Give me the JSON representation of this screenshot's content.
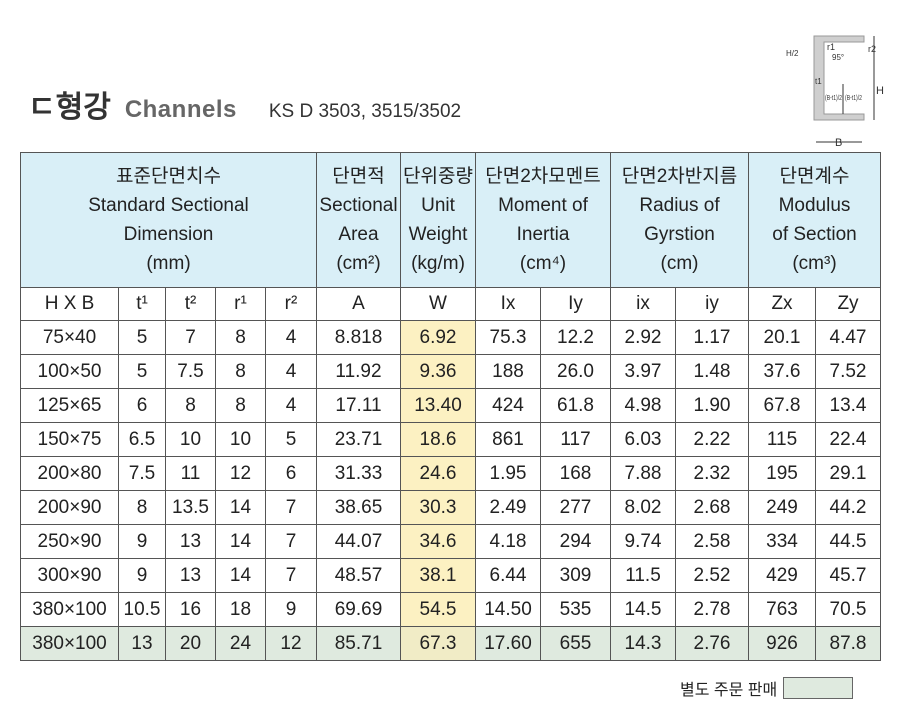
{
  "title": {
    "korean": "ㄷ형강",
    "english": "Channels",
    "standard": "KS D 3503, 3515/3502"
  },
  "diagram": {
    "labels": [
      "H/2",
      "r1",
      "95°",
      "r2",
      "t1",
      "H",
      "(B-t1)/2",
      "(B-t1)/2",
      "B"
    ]
  },
  "header": {
    "groups": [
      {
        "ko": "표준단면치수",
        "en1": "Standard Sectional",
        "en2": "Dimension",
        "unit": "(mm)"
      },
      {
        "ko": "단면적",
        "en1": "Sectional",
        "en2": "Area",
        "unit": "(cm²)"
      },
      {
        "ko": "단위중량",
        "en1": "Unit",
        "en2": "Weight",
        "unit": "(kg/m)"
      },
      {
        "ko": "단면2차모멘트",
        "en1": "Moment of",
        "en2": "Inertia",
        "unit": "(cm⁴)"
      },
      {
        "ko": "단면2차반지름",
        "en1": "Radius of",
        "en2": "Gyrstion",
        "unit": "(cm)"
      },
      {
        "ko": "단면계수",
        "en1": "Modulus",
        "en2": "of Section",
        "unit": "(cm³)"
      }
    ],
    "columns": [
      "H X B",
      "t¹",
      "t²",
      "r¹",
      "r²",
      "A",
      "W",
      "Ix",
      "Iy",
      "ix",
      "iy",
      "Zx",
      "Zy"
    ]
  },
  "rows": [
    [
      "75×40",
      "5",
      "7",
      "8",
      "4",
      "8.818",
      "6.92",
      "75.3",
      "12.2",
      "2.92",
      "1.17",
      "20.1",
      "4.47"
    ],
    [
      "100×50",
      "5",
      "7.5",
      "8",
      "4",
      "11.92",
      "9.36",
      "188",
      "26.0",
      "3.97",
      "1.48",
      "37.6",
      "7.52"
    ],
    [
      "125×65",
      "6",
      "8",
      "8",
      "4",
      "17.11",
      "13.40",
      "424",
      "61.8",
      "4.98",
      "1.90",
      "67.8",
      "13.4"
    ],
    [
      "150×75",
      "6.5",
      "10",
      "10",
      "5",
      "23.71",
      "18.6",
      "861",
      "117",
      "6.03",
      "2.22",
      "115",
      "22.4"
    ],
    [
      "200×80",
      "7.5",
      "11",
      "12",
      "6",
      "31.33",
      "24.6",
      "1.95",
      "168",
      "7.88",
      "2.32",
      "195",
      "29.1"
    ],
    [
      "200×90",
      "8",
      "13.5",
      "14",
      "7",
      "38.65",
      "30.3",
      "2.49",
      "277",
      "8.02",
      "2.68",
      "249",
      "44.2"
    ],
    [
      "250×90",
      "9",
      "13",
      "14",
      "7",
      "44.07",
      "34.6",
      "4.18",
      "294",
      "9.74",
      "2.58",
      "334",
      "44.5"
    ],
    [
      "300×90",
      "9",
      "13",
      "14",
      "7",
      "48.57",
      "38.1",
      "6.44",
      "309",
      "11.5",
      "2.52",
      "429",
      "45.7"
    ],
    [
      "380×100",
      "10.5",
      "16",
      "18",
      "9",
      "69.69",
      "54.5",
      "14.50",
      "535",
      "14.5",
      "2.78",
      "763",
      "70.5"
    ],
    [
      "380×100",
      "13",
      "20",
      "24",
      "12",
      "85.71",
      "67.3",
      "17.60",
      "655",
      "14.3",
      "2.76",
      "926",
      "87.8"
    ]
  ],
  "special_order_row_index": 9,
  "footer": {
    "label": "별도 주문 판매"
  },
  "colors": {
    "header_bg": "#d9eff7",
    "weight_col": "#fcf1c2",
    "special_order": "#dfeadf"
  }
}
